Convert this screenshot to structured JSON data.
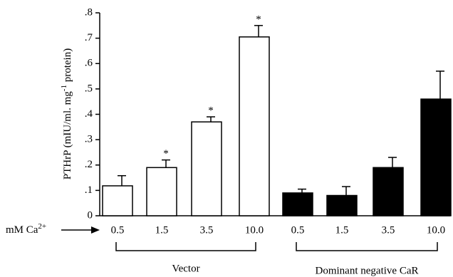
{
  "chart_data": {
    "type": "bar",
    "ylabel": {
      "parts": [
        "PTHrP (mIU/ml. mg",
        "-1",
        " protein)"
      ]
    },
    "xlabel": {
      "parts": [
        "mM Ca",
        "2+"
      ]
    },
    "categories": [
      "0.5",
      "1.5",
      "3.5",
      "10.0"
    ],
    "series": [
      {
        "name": "Vector",
        "color": "#ffffff",
        "values": [
          0.118,
          0.19,
          0.37,
          0.705
        ],
        "errors": [
          0.04,
          0.03,
          0.02,
          0.045
        ],
        "significance_labels": [
          null,
          "*",
          "*",
          "*"
        ]
      },
      {
        "name": "Dominant negative CaR",
        "color": "#000000",
        "values": [
          0.09,
          0.08,
          0.19,
          0.46
        ],
        "errors": [
          0.015,
          0.035,
          0.04,
          0.11
        ]
      }
    ],
    "ylim": [
      0,
      0.8
    ],
    "yticks": [
      0,
      {
        "value": 0.1,
        "label": ".1"
      },
      {
        "value": 0.2,
        "label": ".2"
      },
      {
        "value": 0.3,
        "label": ".3"
      },
      {
        "value": 0.4,
        "label": ".4"
      },
      {
        "value": 0.5,
        "label": ".5"
      },
      {
        "value": 0.6,
        "label": ".6"
      },
      {
        "value": 0.7,
        "label": ".7"
      },
      {
        "value": 0.8,
        "label": ".8"
      }
    ]
  }
}
